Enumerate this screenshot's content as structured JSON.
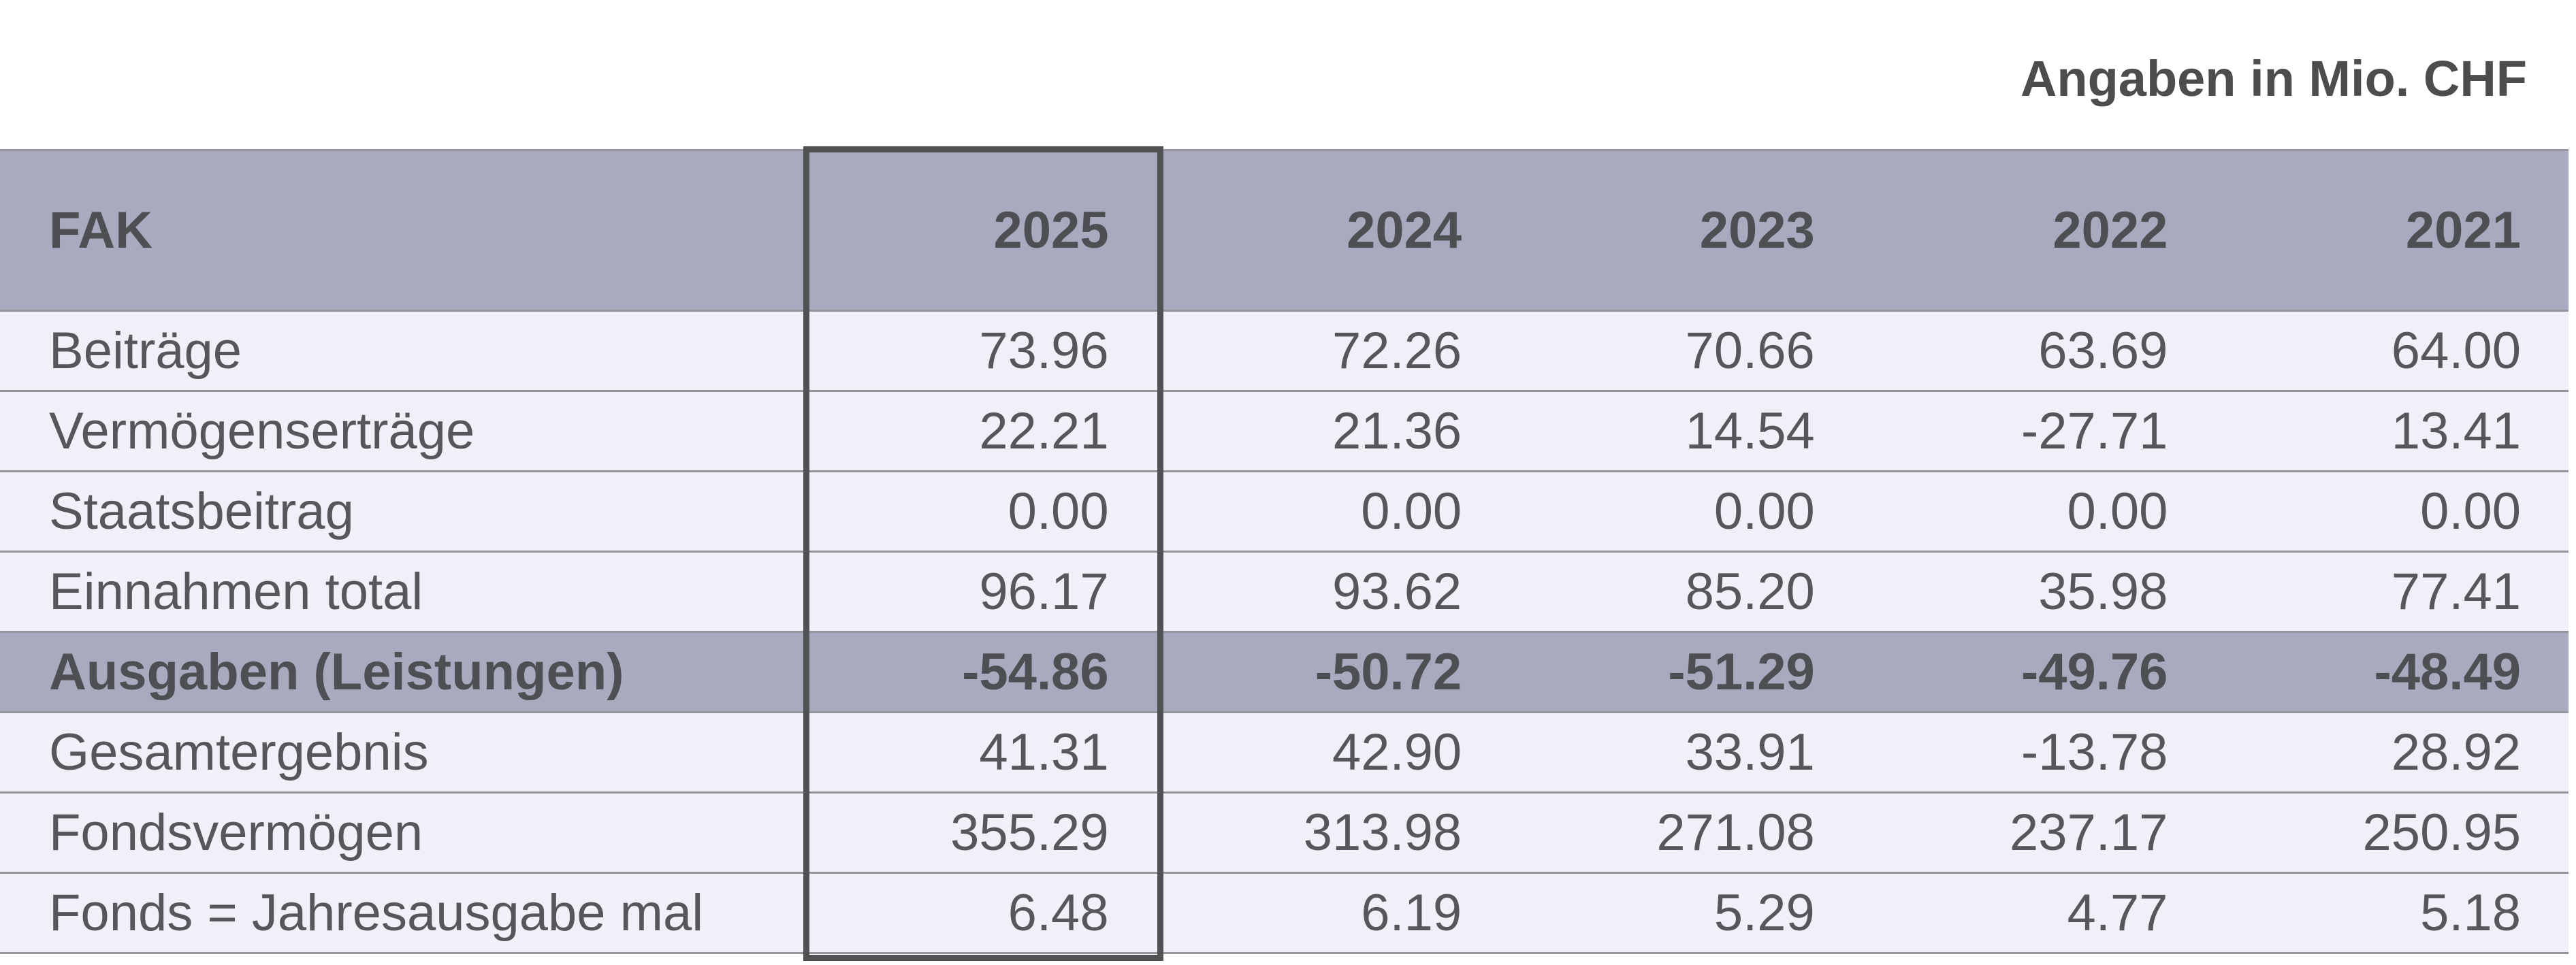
{
  "note": "Angaben in Mio. CHF",
  "table": {
    "header": {
      "label": "FAK",
      "years": [
        "2025",
        "2024",
        "2023",
        "2022",
        "2021"
      ]
    },
    "highlighted_year": "2025",
    "rows": [
      {
        "label": "Beiträge",
        "values": [
          "73.96",
          "72.26",
          "70.66",
          "63.69",
          "64.00"
        ],
        "emphasized": false
      },
      {
        "label": "Vermögenserträge",
        "values": [
          "22.21",
          "21.36",
          "14.54",
          "-27.71",
          "13.41"
        ],
        "emphasized": false
      },
      {
        "label": "Staatsbeitrag",
        "values": [
          "0.00",
          "0.00",
          "0.00",
          "0.00",
          "0.00"
        ],
        "emphasized": false
      },
      {
        "label": "Einnahmen total",
        "values": [
          "96.17",
          "93.62",
          "85.20",
          "35.98",
          "77.41"
        ],
        "emphasized": false
      },
      {
        "label": "Ausgaben (Leistungen)",
        "values": [
          "-54.86",
          "-50.72",
          "-51.29",
          "-49.76",
          "-48.49"
        ],
        "emphasized": true
      },
      {
        "label": "Gesamtergebnis",
        "values": [
          "41.31",
          "42.90",
          "33.91",
          "-13.78",
          "28.92"
        ],
        "emphasized": false
      },
      {
        "label": "Fondsvermögen",
        "values": [
          "355.29",
          "313.98",
          "271.08",
          "237.17",
          "250.95"
        ],
        "emphasized": false
      },
      {
        "label": "Fonds = Jahresausgabe mal",
        "values": [
          "6.48",
          "6.19",
          "5.29",
          "4.77",
          "5.18"
        ],
        "emphasized": false
      }
    ]
  },
  "chart_data": {
    "type": "table",
    "title": "Angaben in Mio. CHF",
    "columns": [
      "FAK",
      "2025",
      "2024",
      "2023",
      "2022",
      "2021"
    ],
    "rows": [
      [
        "Beiträge",
        73.96,
        72.26,
        70.66,
        63.69,
        64.0
      ],
      [
        "Vermögenserträge",
        22.21,
        21.36,
        14.54,
        -27.71,
        13.41
      ],
      [
        "Staatsbeitrag",
        0.0,
        0.0,
        0.0,
        0.0,
        0.0
      ],
      [
        "Einnahmen total",
        96.17,
        93.62,
        85.2,
        35.98,
        77.41
      ],
      [
        "Ausgaben (Leistungen)",
        -54.86,
        -50.72,
        -51.29,
        -49.76,
        -48.49
      ],
      [
        "Gesamtergebnis",
        41.31,
        42.9,
        33.91,
        -13.78,
        28.92
      ],
      [
        "Fondsvermögen",
        355.29,
        313.98,
        271.08,
        237.17,
        250.95
      ],
      [
        "Fonds = Jahresausgabe mal",
        6.48,
        6.19,
        5.29,
        4.77,
        5.18
      ]
    ],
    "highlighted_column": "2025",
    "emphasized_row": "Ausgaben (Leistungen)"
  },
  "colors": {
    "header_bg": "#A8ABBF",
    "row_bg": "#F0F1F8",
    "separator": "#94969C",
    "highlight_border": "#505153",
    "text": "#55575A",
    "bold_text": "#4D4F52",
    "title_text": "#4B4D4F"
  }
}
